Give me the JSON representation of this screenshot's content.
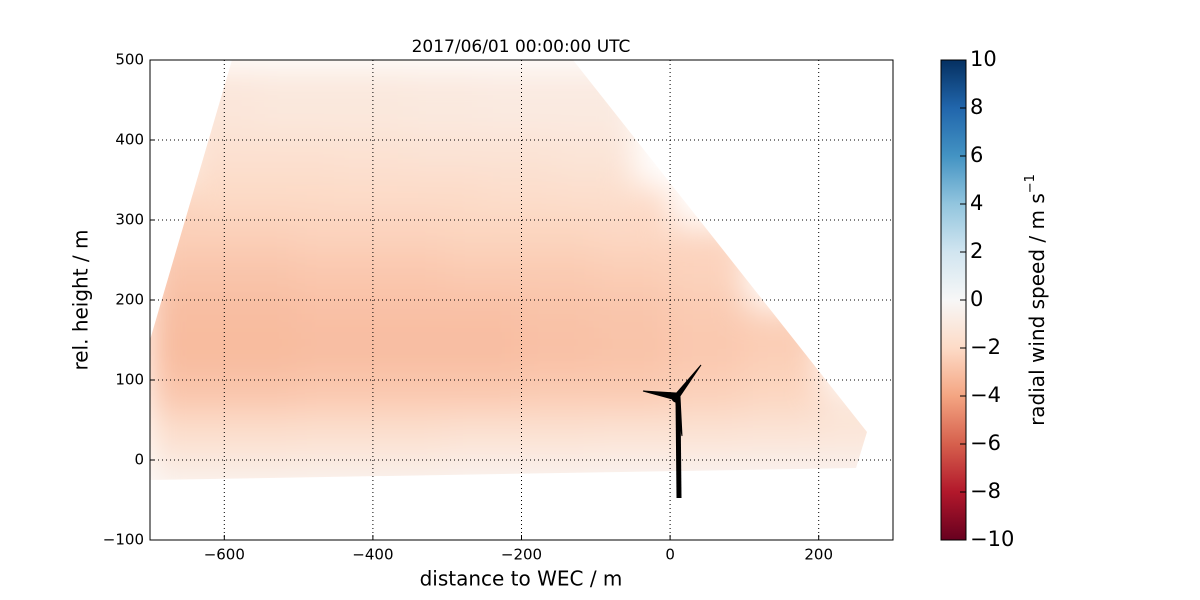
{
  "chart_data": {
    "type": "scatter",
    "title": "2017/06/01 00:00:00 UTC",
    "x_label": "distance to WEC / m",
    "y_label": "rel. height / m",
    "xlim": [
      -700,
      300
    ],
    "ylim": [
      -100,
      500
    ],
    "xticks": [
      {
        "value": -600,
        "label": "−600"
      },
      {
        "value": -400,
        "label": "−400"
      },
      {
        "value": -200,
        "label": "−200"
      },
      0,
      200
    ],
    "yticks": [
      {
        "value": -100,
        "label": "−100"
      },
      0,
      100,
      200,
      300,
      400,
      500
    ],
    "grid": true,
    "x": [
      -650,
      -550,
      -450,
      -350,
      -250,
      -150,
      -50,
      50,
      150,
      250,
      -650,
      -550,
      -450,
      -350,
      -250,
      -150,
      -50,
      50,
      150,
      250,
      -650,
      -550,
      -450,
      -350,
      -250,
      -150,
      -50,
      50,
      150,
      -650,
      -550,
      -450,
      -350,
      -250,
      -150,
      -50,
      50,
      150,
      -650,
      -550,
      -450,
      -350,
      -250,
      -150,
      -50,
      50,
      -650,
      -550,
      -450,
      -350,
      -250,
      -150,
      -50,
      50,
      -650,
      -550,
      -450,
      -350,
      -250,
      -150,
      -50,
      -600,
      -500,
      -400,
      -300,
      -200,
      -100,
      -600,
      -500,
      -400,
      -300,
      -200,
      -100,
      -600,
      -500,
      -400,
      -300,
      -200,
      -100
    ],
    "y": [
      0,
      0,
      0,
      0,
      0,
      0,
      0,
      0,
      0,
      0,
      50,
      50,
      50,
      50,
      50,
      50,
      50,
      50,
      50,
      50,
      100,
      100,
      100,
      100,
      100,
      100,
      100,
      100,
      100,
      150,
      150,
      150,
      150,
      150,
      150,
      150,
      150,
      150,
      200,
      200,
      200,
      200,
      200,
      200,
      200,
      200,
      250,
      250,
      250,
      250,
      250,
      250,
      250,
      250,
      300,
      300,
      300,
      300,
      300,
      300,
      300,
      350,
      350,
      350,
      350,
      350,
      350,
      400,
      400,
      400,
      400,
      400,
      400,
      450,
      450,
      450,
      450,
      450,
      450
    ],
    "values": [
      -0.8,
      -0.8,
      -0.7,
      -0.7,
      -0.6,
      -0.6,
      -0.5,
      -0.5,
      -0.5,
      -0.5,
      -1.8,
      -1.8,
      -1.7,
      -1.7,
      -1.6,
      -1.6,
      -1.5,
      -1.5,
      -1.4,
      -1.3,
      -2.8,
      -2.8,
      -2.7,
      -2.7,
      -2.7,
      -2.6,
      -2.6,
      -2.4,
      -2.2,
      -3.2,
      -3.2,
      -3.1,
      -3.1,
      -3.1,
      -3.0,
      -2.9,
      -2.7,
      -2.5,
      -3.1,
      -3.1,
      -3.0,
      -3.0,
      -3.0,
      -2.9,
      -2.8,
      -2.6,
      -2.8,
      -2.8,
      -2.7,
      -2.7,
      -2.6,
      -2.6,
      -2.5,
      -2.3,
      -2.4,
      -2.4,
      -2.3,
      -2.3,
      -2.2,
      -2.2,
      -2.1,
      -2.0,
      -2.0,
      -1.9,
      -1.9,
      -1.8,
      -1.7,
      -1.6,
      -1.6,
      -1.5,
      -1.4,
      -1.4,
      -1.3,
      -1.2,
      -1.1,
      -1.1,
      -1.0,
      -0.9,
      -0.9
    ],
    "colorbar": {
      "label": "radial wind speed / m s",
      "label_superscript": "−1",
      "clim": [
        -10,
        10
      ],
      "ticks": [
        {
          "value": -10,
          "label": "−10"
        },
        {
          "value": -8,
          "label": "−8"
        },
        {
          "value": -6,
          "label": "−6"
        },
        {
          "value": -4,
          "label": "−4"
        },
        {
          "value": -2,
          "label": "−2"
        },
        0,
        2,
        4,
        6,
        8,
        10
      ],
      "colormap": [
        "#67001f",
        "#b2182b",
        "#d6604d",
        "#f4a582",
        "#fddbc7",
        "#f7f7f7",
        "#d1e5f0",
        "#92c5de",
        "#4393c3",
        "#2166ac",
        "#053061"
      ]
    }
  }
}
